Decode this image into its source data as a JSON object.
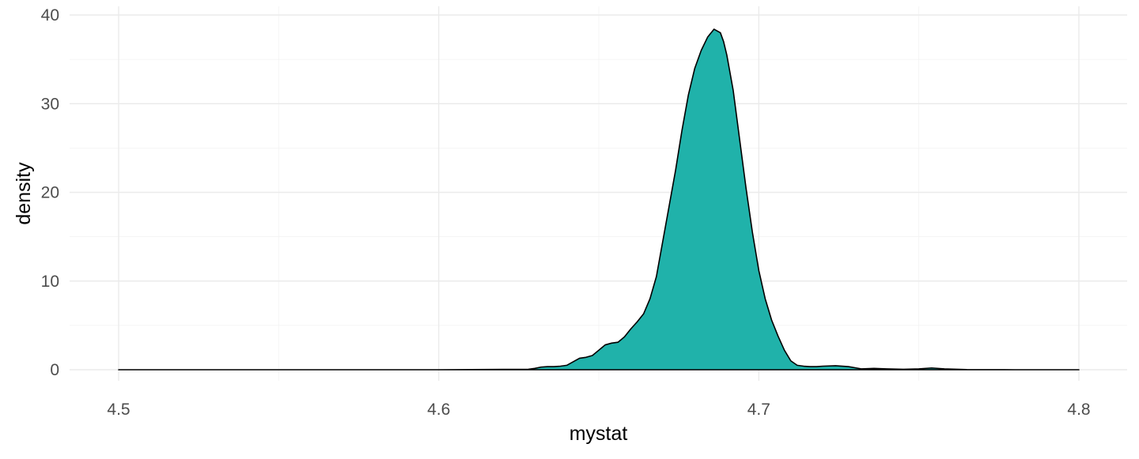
{
  "chart_data": {
    "type": "area",
    "title": "",
    "xlabel": "mystat",
    "ylabel": "density",
    "xlim": [
      4.5,
      4.8
    ],
    "ylim": [
      0,
      40
    ],
    "xticks": [
      4.5,
      4.6,
      4.7,
      4.8
    ],
    "xtick_labels": [
      "4.5",
      "4.6",
      "4.7",
      "4.8"
    ],
    "yticks": [
      0,
      10,
      20,
      30,
      40
    ],
    "ytick_labels": [
      "0",
      "10",
      "20",
      "30",
      "40"
    ],
    "grid": true,
    "legend": "none",
    "fill_color": "#20B2AA",
    "line_color": "#000000",
    "series": [
      {
        "x": [
          4.5,
          4.55,
          4.6,
          4.628,
          4.63,
          4.632,
          4.634,
          4.636,
          4.638,
          4.64,
          4.642,
          4.644,
          4.646,
          4.648,
          4.65,
          4.652,
          4.654,
          4.656,
          4.658,
          4.66,
          4.662,
          4.664,
          4.666,
          4.668,
          4.67,
          4.672,
          4.674,
          4.676,
          4.678,
          4.68,
          4.682,
          4.684,
          4.686,
          4.688,
          4.689,
          4.69,
          4.692,
          4.694,
          4.696,
          4.698,
          4.7,
          4.702,
          4.704,
          4.706,
          4.708,
          4.71,
          4.712,
          4.714,
          4.716,
          4.718,
          4.72,
          4.724,
          4.728,
          4.732,
          4.736,
          4.74,
          4.745,
          4.75,
          4.754,
          4.758,
          4.765,
          4.78,
          4.8
        ],
        "y": [
          0,
          0,
          0,
          0.05,
          0.15,
          0.3,
          0.35,
          0.35,
          0.4,
          0.5,
          0.9,
          1.3,
          1.4,
          1.6,
          2.2,
          2.8,
          3.0,
          3.1,
          3.7,
          4.6,
          5.4,
          6.3,
          8.0,
          10.5,
          14.5,
          18.5,
          22.5,
          27.0,
          31.0,
          34.0,
          36.0,
          37.5,
          38.4,
          38.0,
          37.0,
          35.5,
          31.5,
          26.0,
          20.5,
          15.5,
          11.2,
          8.0,
          5.6,
          3.8,
          2.2,
          1.0,
          0.5,
          0.4,
          0.35,
          0.35,
          0.4,
          0.45,
          0.35,
          0.1,
          0.15,
          0.1,
          0.05,
          0.1,
          0.2,
          0.1,
          0.02,
          0,
          0
        ]
      }
    ]
  }
}
